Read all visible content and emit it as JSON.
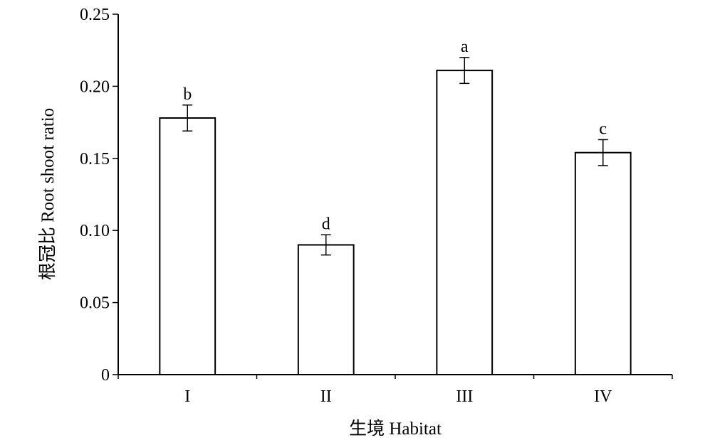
{
  "chart_data": {
    "type": "bar",
    "xlabel": "生境 Habitat",
    "ylabel": "根冠比 Root shoot ratio",
    "ylim": [
      0,
      0.25
    ],
    "yticks": [
      "0",
      "0.05",
      "0.10",
      "0.15",
      "0.20",
      "0.25"
    ],
    "ytick_values": [
      0,
      0.05,
      0.1,
      0.15,
      0.2,
      0.25
    ],
    "categories": [
      "I",
      "II",
      "III",
      "IV"
    ],
    "values": [
      0.178,
      0.09,
      0.211,
      0.154
    ],
    "errors": [
      0.009,
      0.007,
      0.009,
      0.009
    ],
    "significance_letters": [
      "b",
      "d",
      "a",
      "c"
    ],
    "grid": false,
    "colors": {
      "bar_fill": "#ffffff",
      "bar_stroke": "#000000"
    }
  }
}
